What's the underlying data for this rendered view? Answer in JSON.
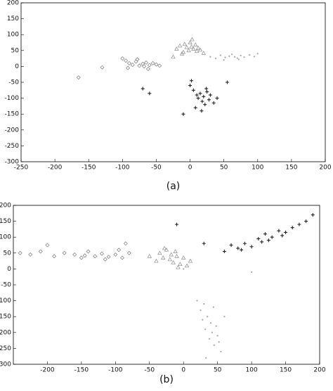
{
  "chart_data": [
    {
      "type": "scatter",
      "caption": "(a)",
      "xlim": [
        -250,
        200
      ],
      "ylim": [
        -300,
        200
      ],
      "xticks": [
        -250,
        -200,
        -150,
        -100,
        -50,
        0,
        50,
        100,
        150,
        200
      ],
      "yticks": [
        -300,
        -250,
        -200,
        -150,
        -100,
        -50,
        0,
        50,
        100,
        150,
        200
      ],
      "grid": false,
      "series": [
        {
          "marker": "diamond",
          "color": "#8a8a8a",
          "x": [
            -165,
            -130,
            -100,
            -95,
            -90,
            -85,
            -80,
            -75,
            -70,
            -68,
            -65,
            -60,
            -55,
            -50,
            -45,
            -92,
            -78,
            -62
          ],
          "y": [
            -35,
            -3,
            25,
            18,
            10,
            5,
            15,
            2,
            8,
            0,
            12,
            4,
            10,
            6,
            2,
            -5,
            22,
            -8
          ]
        },
        {
          "marker": "triangle",
          "color": "#9a9a9a",
          "x": [
            -20,
            -15,
            -10,
            -8,
            -5,
            -2,
            0,
            2,
            5,
            8,
            10,
            12,
            15,
            20,
            -12,
            3,
            -25
          ],
          "y": [
            55,
            65,
            45,
            70,
            60,
            50,
            75,
            62,
            55,
            68,
            48,
            58,
            52,
            42,
            40,
            85,
            30
          ]
        },
        {
          "marker": "plus",
          "color": "#222222",
          "x": [
            -70,
            -60,
            -10,
            55,
            0,
            5,
            10,
            12,
            15,
            18,
            20,
            22,
            25,
            28,
            30,
            35,
            8,
            17,
            24,
            40,
            2
          ],
          "y": [
            -70,
            -85,
            -150,
            -50,
            -60,
            -75,
            -90,
            -100,
            -85,
            -110,
            -95,
            -120,
            -80,
            -105,
            -90,
            -115,
            -130,
            -140,
            -70,
            -100,
            -45
          ]
        },
        {
          "marker": "dot",
          "color": "#b0b0b0",
          "x": [
            30,
            38,
            45,
            52,
            58,
            62,
            66,
            70,
            75,
            80,
            88,
            95,
            100,
            50,
            72
          ],
          "y": [
            30,
            25,
            35,
            28,
            32,
            38,
            30,
            26,
            34,
            29,
            36,
            31,
            40,
            20,
            22
          ]
        }
      ]
    },
    {
      "type": "scatter",
      "caption": "(b)",
      "xlim": [
        -250,
        200
      ],
      "ylim": [
        -300,
        200
      ],
      "xticks": [
        -200,
        -150,
        -100,
        -50,
        0,
        50,
        100,
        150,
        200
      ],
      "yticks": [
        -300,
        -250,
        -200,
        -150,
        -100,
        -50,
        0,
        50,
        100,
        150,
        200
      ],
      "grid": false,
      "series": [
        {
          "marker": "diamond",
          "color": "#8a8a8a",
          "x": [
            -240,
            -225,
            -210,
            -200,
            -190,
            -175,
            -160,
            -150,
            -140,
            -130,
            -120,
            -110,
            -100,
            -95,
            -90,
            -85,
            -80,
            -145,
            -115
          ],
          "y": [
            50,
            45,
            55,
            75,
            40,
            50,
            45,
            35,
            55,
            40,
            48,
            38,
            45,
            60,
            35,
            80,
            50,
            42,
            30
          ]
        },
        {
          "marker": "triangle",
          "color": "#9a9a9a",
          "x": [
            -50,
            -40,
            -35,
            -30,
            -25,
            -20,
            -18,
            -15,
            -12,
            -10,
            -5,
            0,
            5,
            10,
            -28,
            -8
          ],
          "y": [
            40,
            25,
            50,
            35,
            60,
            30,
            45,
            20,
            55,
            40,
            15,
            35,
            10,
            25,
            65,
            5
          ]
        },
        {
          "marker": "plus",
          "color": "#222222",
          "x": [
            -10,
            30,
            60,
            70,
            80,
            90,
            100,
            110,
            115,
            120,
            130,
            140,
            150,
            160,
            170,
            180,
            190,
            85,
            125,
            145
          ],
          "y": [
            140,
            80,
            55,
            75,
            65,
            80,
            70,
            95,
            85,
            110,
            100,
            120,
            115,
            130,
            140,
            150,
            170,
            60,
            90,
            105
          ]
        },
        {
          "marker": "dot",
          "color": "#b0b0b0",
          "x": [
            0,
            100,
            20,
            25,
            28,
            30,
            32,
            35,
            38,
            40,
            42,
            45,
            48,
            50,
            55,
            60,
            33,
            44,
            52
          ],
          "y": [
            0,
            -10,
            -100,
            -130,
            -160,
            -110,
            -190,
            -150,
            -220,
            -170,
            -200,
            -240,
            -180,
            -210,
            -260,
            -150,
            -280,
            -120,
            -230
          ]
        }
      ]
    }
  ]
}
